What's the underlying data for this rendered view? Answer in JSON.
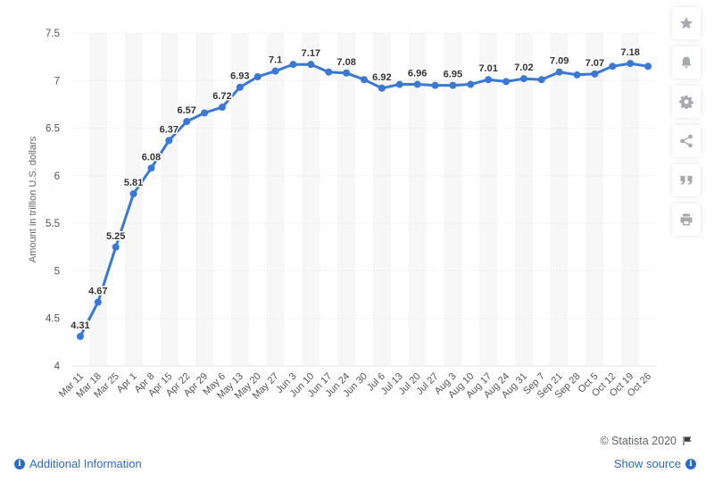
{
  "chart_data": {
    "type": "line",
    "title": "",
    "ylabel": "Amount in trillion U.S. dollars",
    "xlabel": "",
    "ylim": [
      4,
      7.5
    ],
    "yticks": [
      4,
      4.5,
      5,
      5.5,
      6,
      6.5,
      7,
      7.5
    ],
    "ytick_labels": [
      "4",
      "4.5",
      "5",
      "5.5",
      "6",
      "6.5",
      "7",
      "7.5"
    ],
    "categories": [
      "Mar 11",
      "Mar 18",
      "Mar 25",
      "Apr 1",
      "Apr 8",
      "Apr 15",
      "Apr 22",
      "Apr 29",
      "May 6",
      "May 13",
      "May 20",
      "May 27",
      "Jun 3",
      "Jun 10",
      "Jun 17",
      "Jun 24",
      "Jun 30",
      "Jul 6",
      "Jul 13",
      "Jul 20",
      "Jul 27",
      "Aug 3",
      "Aug 10",
      "Aug 17",
      "Aug 24",
      "Aug 31",
      "Sep 7",
      "Sep 21",
      "Sep 28",
      "Oct 5",
      "Oct 12",
      "Oct 19",
      "Oct 26"
    ],
    "values": [
      4.31,
      4.67,
      5.25,
      5.81,
      6.08,
      6.37,
      6.57,
      6.66,
      6.72,
      6.93,
      7.04,
      7.1,
      7.17,
      7.17,
      7.09,
      7.08,
      7.01,
      6.92,
      6.96,
      6.96,
      6.95,
      6.95,
      6.96,
      7.01,
      6.99,
      7.02,
      7.01,
      7.09,
      7.06,
      7.07,
      7.15,
      7.18,
      7.15
    ],
    "data_labels": [
      {
        "index": 0,
        "text": "4.31"
      },
      {
        "index": 1,
        "text": "4.67"
      },
      {
        "index": 2,
        "text": "5.25"
      },
      {
        "index": 3,
        "text": "5.81"
      },
      {
        "index": 4,
        "text": "6.08"
      },
      {
        "index": 5,
        "text": "6.37"
      },
      {
        "index": 6,
        "text": "6.57"
      },
      {
        "index": 8,
        "text": "6.72"
      },
      {
        "index": 9,
        "text": "6.93"
      },
      {
        "index": 11,
        "text": "7.1"
      },
      {
        "index": 13,
        "text": "7.17"
      },
      {
        "index": 15,
        "text": "7.08"
      },
      {
        "index": 17,
        "text": "6.92"
      },
      {
        "index": 19,
        "text": "6.96"
      },
      {
        "index": 21,
        "text": "6.95"
      },
      {
        "index": 23,
        "text": "7.01"
      },
      {
        "index": 25,
        "text": "7.02"
      },
      {
        "index": 27,
        "text": "7.09"
      },
      {
        "index": 29,
        "text": "7.07"
      },
      {
        "index": 31,
        "text": "7.18"
      }
    ],
    "grid": true,
    "line_color": "#3a78d6"
  },
  "toolbar": {
    "icons": [
      "star-icon",
      "bell-icon",
      "gear-icon",
      "share-icon",
      "quote-icon",
      "print-icon"
    ]
  },
  "footer": {
    "copyright": "© Statista 2020",
    "additional_info": "Additional Information",
    "show_source": "Show source"
  },
  "colors": {
    "accent": "#2b6cc2",
    "series": "#3a78d6",
    "band": "#f7f7f7"
  }
}
